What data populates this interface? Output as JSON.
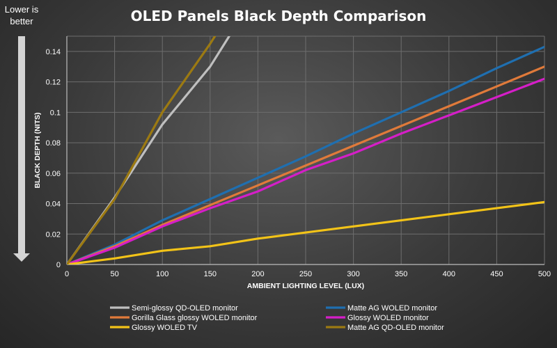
{
  "chart_data": {
    "type": "line",
    "title": "OLED Panels Black Depth Comparison",
    "annotation": "Lower is better",
    "xlabel": "AMBIENT LIGHTING LEVEL (LUX)",
    "ylabel": "BLACK DEPTH (NITS)",
    "xlim": [
      0,
      500
    ],
    "ylim": [
      0,
      0.15
    ],
    "x_ticks": [
      "0",
      "50",
      "100",
      "150",
      "200",
      "250",
      "300",
      "350",
      "400",
      "450",
      "500"
    ],
    "y_ticks": [
      "0",
      "0.02",
      "0.04",
      "0.06",
      "0.08",
      "0.1",
      "0.12",
      "0.14"
    ],
    "grid": true,
    "legend_position": "bottom",
    "series": [
      {
        "name": "Semi-glossy QD-OLED monitor",
        "color": "#bfbfbf",
        "x": [
          0,
          50,
          100,
          150,
          170
        ],
        "y": [
          0,
          0.044,
          0.092,
          0.13,
          0.15
        ]
      },
      {
        "name": "Matte AG WOLED monitor",
        "color": "#1f6fb0",
        "x": [
          0,
          50,
          100,
          150,
          200,
          250,
          300,
          350,
          400,
          450,
          500
        ],
        "y": [
          0,
          0.013,
          0.029,
          0.043,
          0.057,
          0.071,
          0.086,
          0.1,
          0.114,
          0.129,
          0.143
        ]
      },
      {
        "name": "Gorilla Glass glossy WOLED monitor",
        "color": "#e07a3a",
        "x": [
          0,
          50,
          100,
          150,
          200,
          250,
          300,
          350,
          400,
          450,
          500
        ],
        "y": [
          0,
          0.012,
          0.026,
          0.039,
          0.052,
          0.065,
          0.078,
          0.091,
          0.104,
          0.117,
          0.13
        ]
      },
      {
        "name": "Glossy WOLED monitor",
        "color": "#d51ec8",
        "x": [
          0,
          50,
          100,
          150,
          200,
          250,
          300,
          350,
          400,
          450,
          500
        ],
        "y": [
          0,
          0.011,
          0.025,
          0.037,
          0.048,
          0.062,
          0.073,
          0.086,
          0.098,
          0.11,
          0.122
        ]
      },
      {
        "name": "Glossy WOLED TV",
        "color": "#f2c318",
        "x": [
          0,
          50,
          100,
          150,
          200,
          250,
          300,
          350,
          400,
          450,
          500
        ],
        "y": [
          0,
          0.004,
          0.009,
          0.012,
          0.017,
          0.021,
          0.025,
          0.029,
          0.033,
          0.037,
          0.041
        ]
      },
      {
        "name": "Matte AG QD-OLED monitor",
        "color": "#9c7a12",
        "x": [
          0,
          50,
          100,
          150,
          155
        ],
        "y": [
          0,
          0.043,
          0.1,
          0.145,
          0.15
        ]
      }
    ]
  }
}
